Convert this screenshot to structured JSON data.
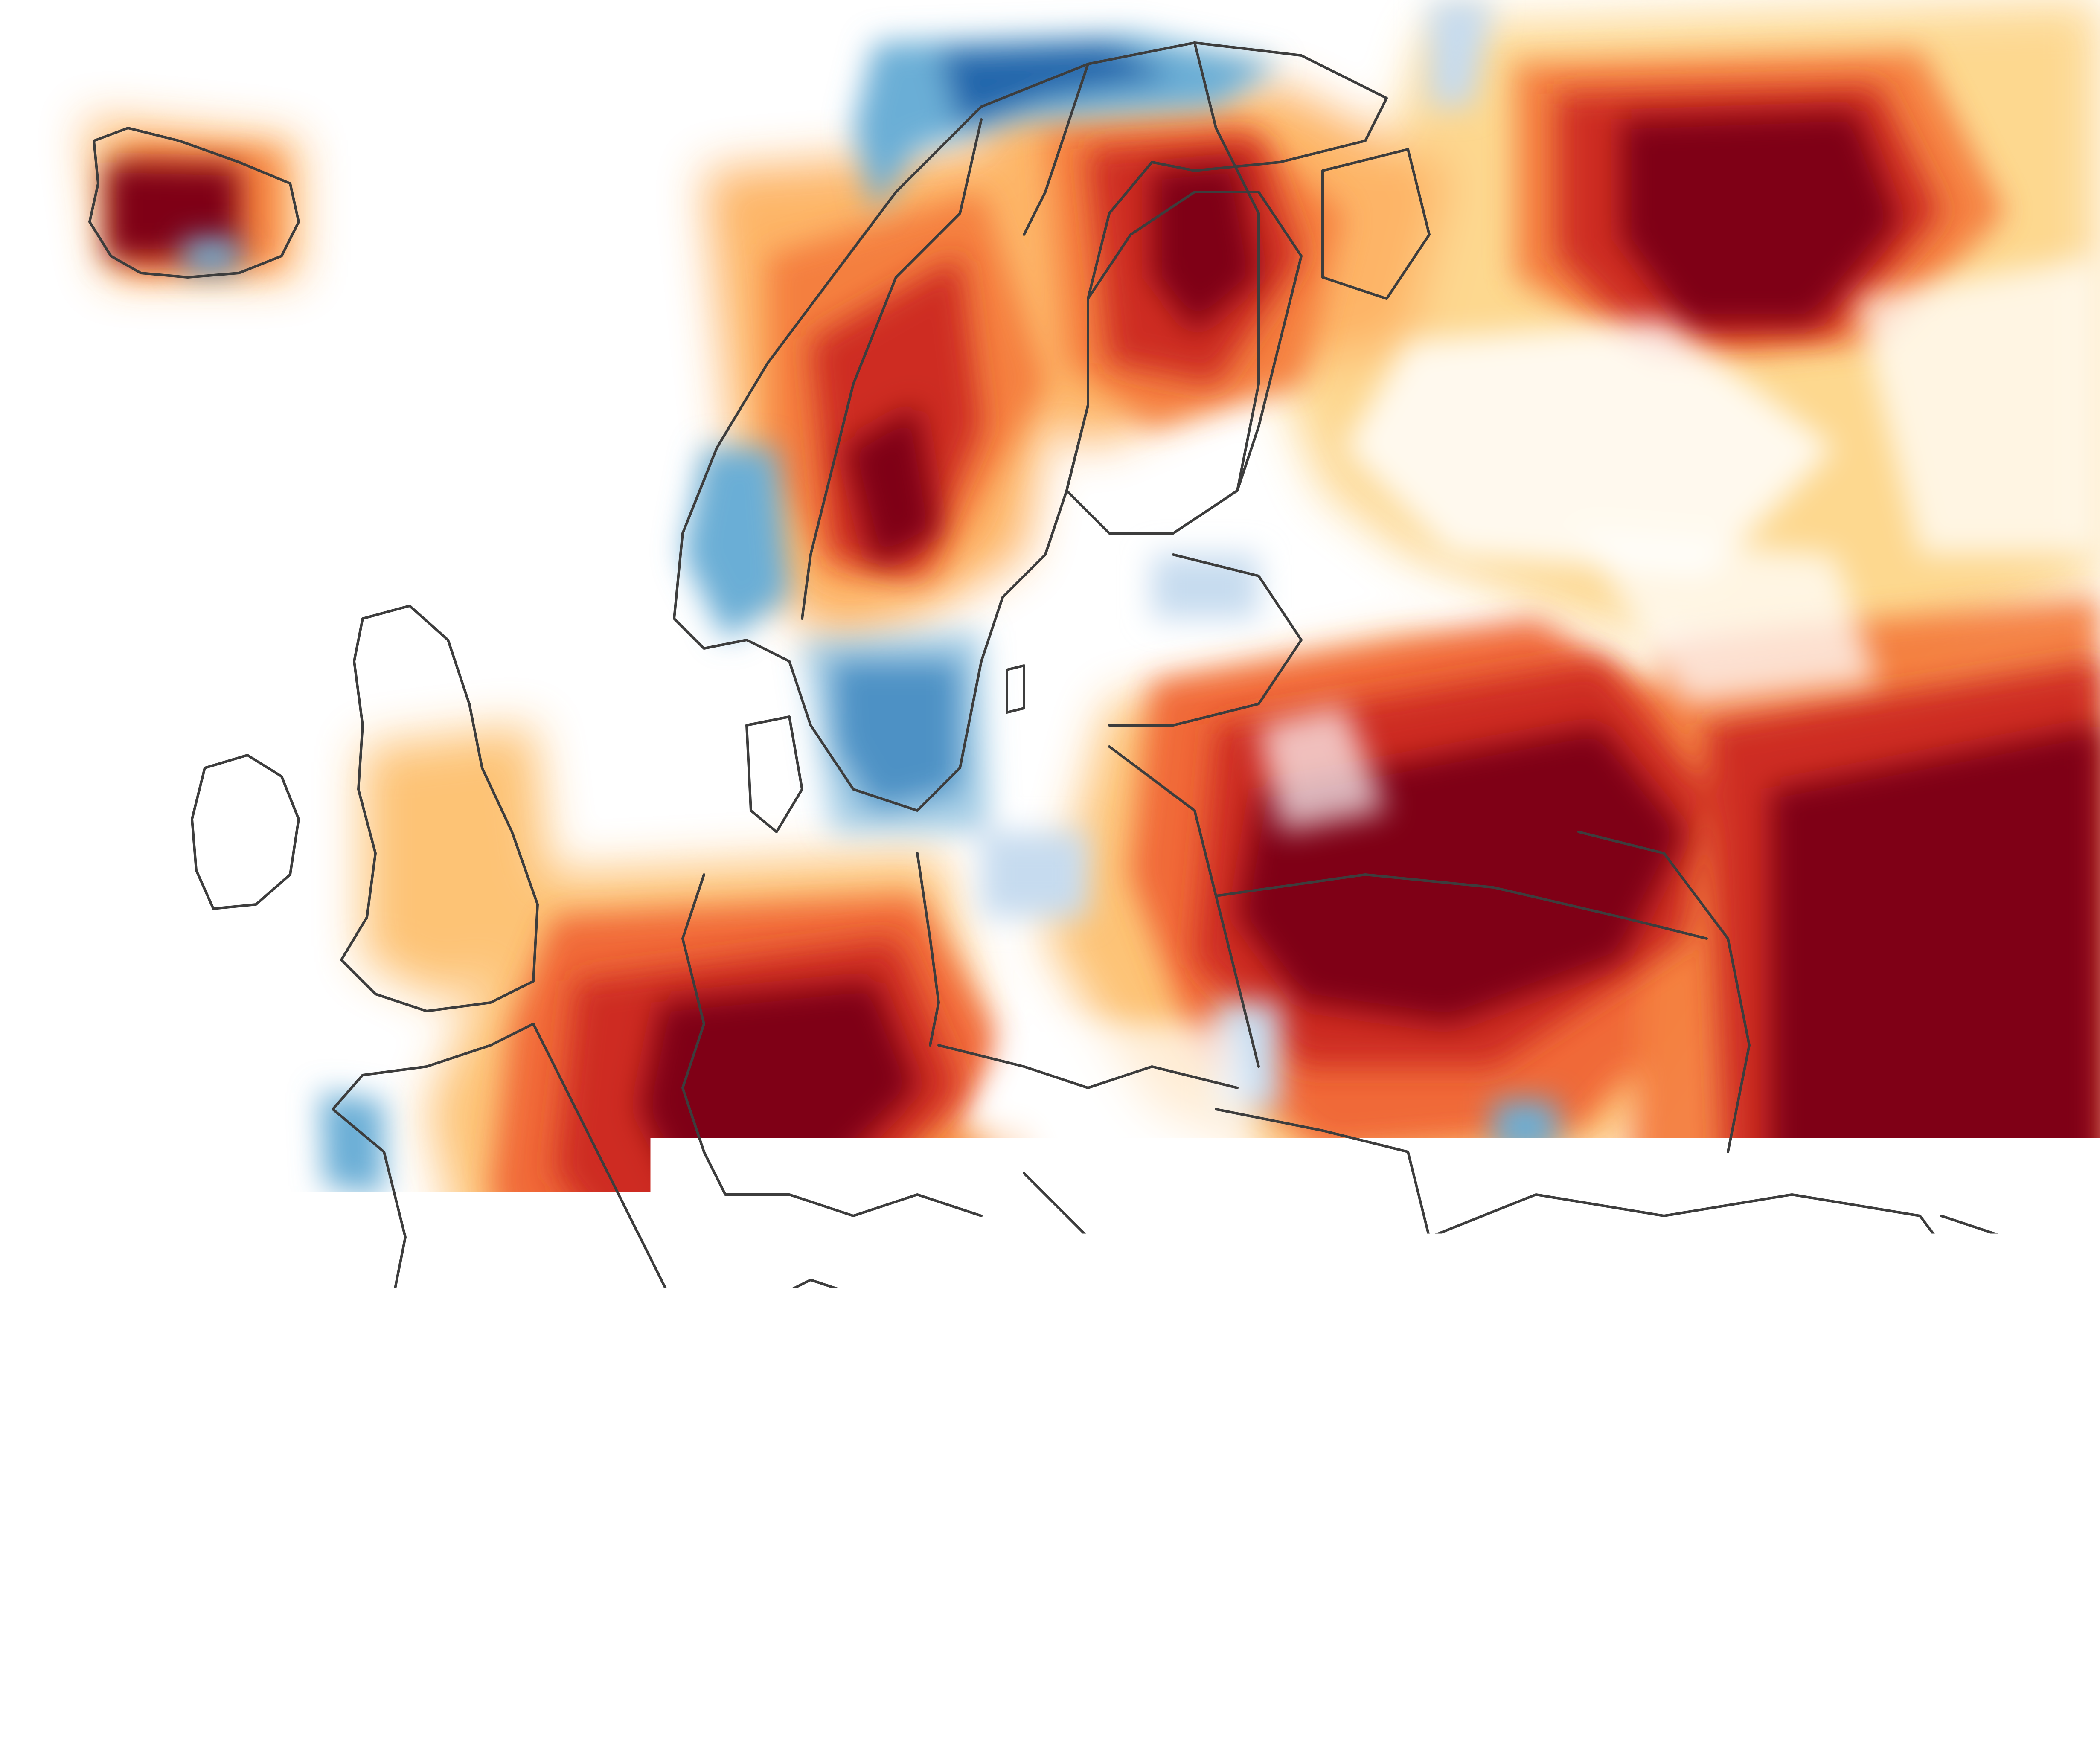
{
  "map": {
    "subject": "europe-temperature-anomaly",
    "colors": {
      "ocean": "#ffffff",
      "border": "#3d3d3d",
      "anomaly_scale": [
        "#08306b",
        "#2166ac",
        "#6baed6",
        "#c6dbef",
        "#ffffff",
        "#fee391",
        "#fdae61",
        "#f46d43",
        "#d7301f",
        "#7f0019"
      ]
    }
  }
}
